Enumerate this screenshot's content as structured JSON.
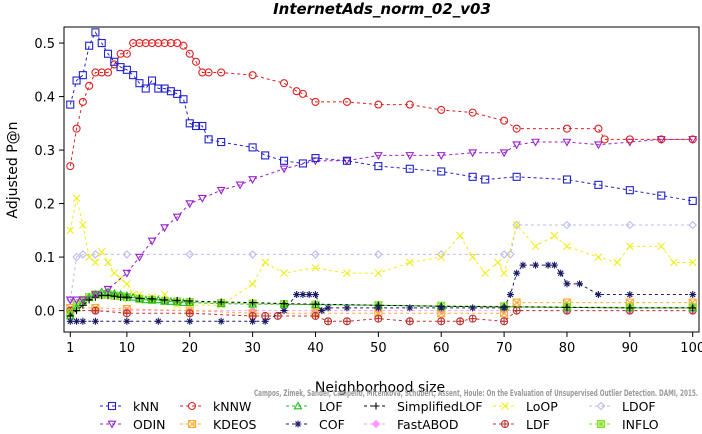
{
  "chart_data": {
    "type": "line",
    "title": "InternetAds_norm_02_v03",
    "xlabel": "Neighborhood size",
    "ylabel": "Adjusted P@n",
    "xlim": [
      0,
      101
    ],
    "ylim": [
      -0.04,
      0.53
    ],
    "xticks": [
      1,
      10,
      20,
      30,
      40,
      50,
      60,
      70,
      80,
      90,
      100
    ],
    "yticks": [
      0.0,
      0.1,
      0.2,
      0.3,
      0.4,
      0.5
    ],
    "ytick_labels": [
      "0.0",
      "0.1",
      "0.2",
      "0.3",
      "0.4",
      "0.5"
    ],
    "grid": false,
    "legend_position": "bottom",
    "watermark": "Campos, Zimek, Sander, Campello, Micenkova, Schubert, Assent, Houle: On the Evaluation of Unsupervised Outlier Detection. DAMI, 2015.",
    "series": [
      {
        "name": "kNN",
        "color": "#2222cc",
        "marker": "square",
        "x": [
          1,
          2,
          3,
          4,
          5,
          6,
          7,
          8,
          9,
          10,
          11,
          12,
          13,
          14,
          15,
          16,
          17,
          18,
          19,
          20,
          21,
          22,
          23,
          25,
          30,
          32,
          35,
          38,
          40,
          45,
          50,
          55,
          60,
          65,
          67,
          72,
          80,
          85,
          90,
          95,
          100
        ],
        "values": [
          0.385,
          0.43,
          0.44,
          0.495,
          0.52,
          0.5,
          0.48,
          0.465,
          0.455,
          0.45,
          0.44,
          0.425,
          0.415,
          0.43,
          0.415,
          0.415,
          0.41,
          0.405,
          0.395,
          0.35,
          0.345,
          0.345,
          0.32,
          0.315,
          0.305,
          0.29,
          0.28,
          0.275,
          0.285,
          0.28,
          0.27,
          0.265,
          0.26,
          0.25,
          0.245,
          0.25,
          0.245,
          0.235,
          0.225,
          0.215,
          0.205
        ]
      },
      {
        "name": "kNNW",
        "color": "#dd2222",
        "marker": "circle",
        "x": [
          1,
          2,
          3,
          4,
          5,
          6,
          7,
          8,
          9,
          10,
          11,
          12,
          13,
          14,
          15,
          16,
          17,
          18,
          19,
          20,
          21,
          22,
          23,
          25,
          30,
          35,
          37,
          38,
          40,
          45,
          50,
          55,
          60,
          65,
          70,
          72,
          80,
          85,
          86,
          90,
          95,
          100
        ],
        "values": [
          0.27,
          0.34,
          0.39,
          0.42,
          0.445,
          0.445,
          0.445,
          0.46,
          0.48,
          0.48,
          0.5,
          0.5,
          0.5,
          0.5,
          0.5,
          0.5,
          0.5,
          0.5,
          0.495,
          0.48,
          0.465,
          0.445,
          0.445,
          0.445,
          0.44,
          0.425,
          0.41,
          0.405,
          0.39,
          0.39,
          0.385,
          0.385,
          0.375,
          0.37,
          0.355,
          0.34,
          0.34,
          0.34,
          0.32,
          0.32,
          0.32,
          0.32
        ]
      },
      {
        "name": "LOF",
        "color": "#22bb22",
        "marker": "triangle",
        "x": [
          1,
          2,
          3,
          4,
          5,
          6,
          7,
          8,
          9,
          10,
          11,
          12,
          13,
          14,
          15,
          16,
          17,
          18,
          19,
          20,
          25,
          30,
          35,
          40,
          50,
          60,
          70,
          80,
          90,
          100
        ],
        "values": [
          -0.01,
          0.005,
          0.015,
          0.025,
          0.03,
          0.035,
          0.035,
          0.032,
          0.03,
          0.028,
          0.025,
          0.022,
          0.02,
          0.02,
          0.02,
          0.018,
          0.017,
          0.016,
          0.015,
          0.015,
          0.013,
          0.012,
          0.012,
          0.011,
          0.01,
          0.008,
          0.007,
          0.006,
          0.005,
          0.005
        ]
      },
      {
        "name": "SimplifiedLOF",
        "color": "#000000",
        "marker": "plus",
        "x": [
          1,
          2,
          3,
          4,
          5,
          6,
          7,
          8,
          9,
          10,
          12,
          14,
          16,
          18,
          20,
          25,
          30,
          35,
          40,
          50,
          60,
          70,
          80,
          90,
          100
        ],
        "values": [
          -0.01,
          0.0,
          0.01,
          0.02,
          0.025,
          0.028,
          0.028,
          0.027,
          0.025,
          0.025,
          0.023,
          0.022,
          0.02,
          0.019,
          0.018,
          0.016,
          0.015,
          0.013,
          0.012,
          0.01,
          0.008,
          0.007,
          0.006,
          0.005,
          0.005
        ]
      },
      {
        "name": "LoOP",
        "color": "#eeee22",
        "marker": "x",
        "x": [
          1,
          2,
          3,
          4,
          5,
          6,
          7,
          8,
          9,
          10,
          11,
          12,
          14,
          16,
          18,
          20,
          25,
          30,
          32,
          35,
          40,
          45,
          50,
          55,
          60,
          63,
          65,
          67,
          69,
          70,
          72,
          75,
          78,
          80,
          85,
          88,
          90,
          95,
          97,
          100
        ],
        "values": [
          0.15,
          0.21,
          0.16,
          0.1,
          0.09,
          0.11,
          0.09,
          0.07,
          0.06,
          0.05,
          0.03,
          0.03,
          0.025,
          0.03,
          0.01,
          0.01,
          0.01,
          0.05,
          0.09,
          0.07,
          0.08,
          0.07,
          0.07,
          0.09,
          0.1,
          0.14,
          0.1,
          0.07,
          0.09,
          0.07,
          0.16,
          0.12,
          0.14,
          0.12,
          0.1,
          0.09,
          0.12,
          0.12,
          0.09,
          0.09
        ]
      },
      {
        "name": "LDOF",
        "color": "#bbbbee",
        "marker": "diamond",
        "x": [
          1,
          2,
          3,
          5,
          10,
          20,
          30,
          40,
          50,
          60,
          70,
          71,
          72,
          80,
          90,
          100
        ],
        "values": [
          0.02,
          0.1,
          0.105,
          0.105,
          0.105,
          0.105,
          0.105,
          0.105,
          0.105,
          0.105,
          0.105,
          0.105,
          0.16,
          0.16,
          0.16,
          0.16
        ]
      },
      {
        "name": "ODIN",
        "color": "#9922cc",
        "marker": "triangle-down",
        "x": [
          1,
          2,
          3,
          5,
          7,
          10,
          12,
          14,
          16,
          18,
          20,
          22,
          25,
          28,
          30,
          35,
          40,
          45,
          50,
          55,
          60,
          65,
          70,
          72,
          75,
          80,
          85,
          90,
          95,
          100
        ],
        "values": [
          0.02,
          0.02,
          0.02,
          0.03,
          0.04,
          0.07,
          0.1,
          0.13,
          0.155,
          0.175,
          0.2,
          0.21,
          0.225,
          0.235,
          0.245,
          0.265,
          0.28,
          0.28,
          0.29,
          0.29,
          0.29,
          0.295,
          0.295,
          0.31,
          0.315,
          0.315,
          0.31,
          0.315,
          0.32,
          0.32
        ]
      },
      {
        "name": "KDEOS",
        "color": "#ffaa33",
        "marker": "square-x",
        "x": [
          1,
          5,
          10,
          20,
          30,
          40,
          50,
          60,
          70,
          72,
          80,
          90,
          100
        ],
        "values": [
          0.005,
          0.005,
          0.003,
          0.0,
          -0.005,
          -0.005,
          -0.005,
          -0.005,
          -0.005,
          0.015,
          0.015,
          0.015,
          0.015
        ]
      },
      {
        "name": "COF",
        "color": "#1a1a66",
        "marker": "asterisk",
        "x": [
          1,
          2,
          3,
          5,
          10,
          15,
          20,
          25,
          30,
          32,
          35,
          37,
          38,
          39,
          40,
          41,
          42,
          45,
          50,
          55,
          60,
          65,
          70,
          71,
          72,
          73,
          75,
          77,
          78,
          79,
          80,
          82,
          85,
          90,
          100
        ],
        "values": [
          -0.02,
          -0.02,
          -0.02,
          -0.02,
          -0.02,
          -0.02,
          -0.02,
          -0.02,
          -0.02,
          -0.02,
          0.0,
          0.03,
          0.03,
          0.03,
          0.03,
          0.0,
          0.005,
          0.005,
          0.005,
          0.005,
          0.005,
          0.005,
          0.005,
          0.03,
          0.07,
          0.085,
          0.085,
          0.085,
          0.085,
          0.07,
          0.05,
          0.05,
          0.03,
          0.03,
          0.03
        ]
      },
      {
        "name": "FastABOD",
        "color": "#ff99ff",
        "marker": "diamond-filled",
        "x": [
          1,
          5,
          10,
          20,
          30,
          40,
          50,
          60,
          70,
          80,
          90,
          100
        ],
        "values": [
          0.0,
          0.0,
          0.0,
          0.0,
          0.0,
          0.0,
          0.0,
          0.0,
          0.0,
          0.0,
          0.0,
          0.0
        ]
      },
      {
        "name": "LDF",
        "color": "#bb3333",
        "marker": "circle-plus",
        "x": [
          1,
          5,
          10,
          20,
          30,
          32,
          34,
          40,
          42,
          45,
          50,
          55,
          60,
          63,
          65,
          70,
          72,
          80,
          90,
          100
        ],
        "values": [
          0.0,
          0.0,
          -0.005,
          -0.005,
          -0.01,
          -0.01,
          -0.01,
          -0.01,
          -0.02,
          -0.02,
          -0.015,
          -0.02,
          -0.02,
          -0.02,
          -0.015,
          -0.02,
          0.0,
          0.0,
          0.0,
          0.0
        ]
      },
      {
        "name": "INFLO",
        "color": "#88dd22",
        "marker": "square-asterisk",
        "x": [
          1,
          2,
          3,
          4,
          5,
          6,
          7,
          8,
          9,
          10,
          12,
          14,
          16,
          18,
          20,
          25,
          30,
          35,
          40,
          50,
          60,
          70,
          80,
          90,
          100
        ],
        "values": [
          -0.005,
          0.01,
          0.02,
          0.025,
          0.03,
          0.03,
          0.03,
          0.028,
          0.027,
          0.025,
          0.022,
          0.02,
          0.018,
          0.017,
          0.016,
          0.014,
          0.013,
          0.012,
          0.011,
          0.01,
          0.009,
          0.008,
          0.007,
          0.006,
          0.006
        ]
      }
    ]
  }
}
